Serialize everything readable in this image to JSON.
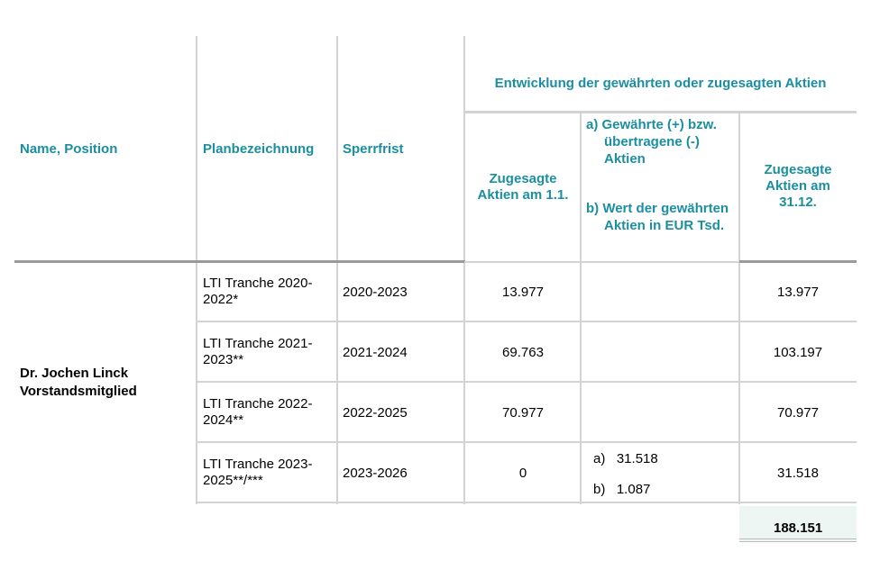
{
  "header": {
    "group": "Entwicklung der gewährten oder zugesagten Aktien",
    "columns": [
      "Name, Position",
      "Planbezeichnung",
      "Sperrfrist",
      "Zugesagte Aktien am 1.1.",
      {
        "a": "a) Gewährte (+) bzw. übertragene (-) Aktien",
        "b": "b) Wert der gewährten Aktien in EUR Tsd."
      },
      "Zugesagte Aktien am 31.12."
    ]
  },
  "person": {
    "name": "Dr. Jochen Linck",
    "position": "Vorstandsmitglied"
  },
  "table": {
    "rows": [
      [
        "LTI Tranche 2020-2022*",
        "2020-2023",
        "13.977",
        null,
        null,
        "13.977"
      ],
      [
        "LTI Tranche 2021-2023**",
        "2021-2024",
        "69.763",
        null,
        null,
        "103.197"
      ],
      [
        "LTI Tranche 2022-2024**",
        "2022-2025",
        "70.977",
        null,
        null,
        "70.977"
      ],
      [
        "LTI Tranche 2023-2025**/***",
        "2023-2026",
        "0",
        "a)   31.518",
        "b)   1.087",
        "31.518"
      ]
    ],
    "total": "188.151"
  }
}
